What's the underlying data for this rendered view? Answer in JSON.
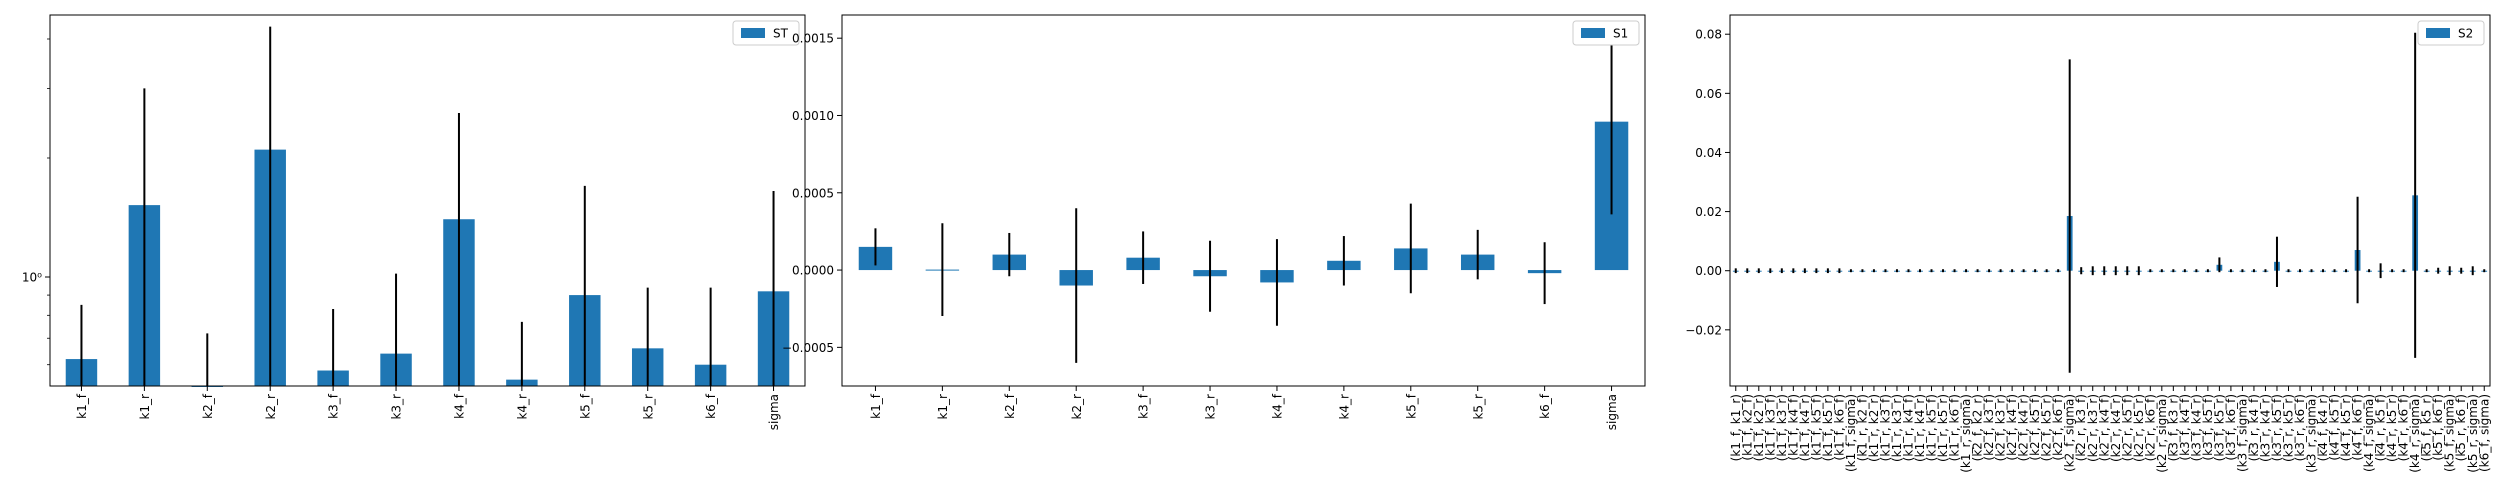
{
  "chart_data": [
    {
      "type": "bar",
      "yscale": "log",
      "categories": [
        "k1_f",
        "k1_r",
        "k2_f",
        "k2_r",
        "k3_f",
        "k3_r",
        "k4_f",
        "k4_r",
        "k5_f",
        "k5_r",
        "k6_f",
        "sigma"
      ],
      "series": [
        {
          "name": "ST",
          "color": "#1f77b4",
          "values": [
            0.62,
            1.52,
            0.53,
            2.1,
            0.58,
            0.64,
            1.4,
            0.55,
            0.9,
            0.66,
            0.6,
            0.92
          ],
          "err_low": [
            0.53,
            0.53,
            0.53,
            0.53,
            0.53,
            0.53,
            0.53,
            0.53,
            0.53,
            0.53,
            0.53,
            0.53
          ],
          "err_high": [
            0.85,
            3.0,
            0.72,
            4.3,
            0.83,
            1.02,
            2.6,
            0.77,
            1.7,
            0.94,
            0.94,
            1.65
          ]
        }
      ],
      "yticks": [
        {
          "value": 1,
          "label": "10⁰"
        }
      ],
      "ylim": [
        0.53,
        4.6
      ],
      "grid": false,
      "legend": "top-right"
    },
    {
      "type": "bar",
      "categories": [
        "k1_f",
        "k1_r",
        "k2_f",
        "k2_r",
        "k3_f",
        "k3_r",
        "k4_f",
        "k4_r",
        "k5_f",
        "k5_r",
        "k6_f",
        "sigma"
      ],
      "series": [
        {
          "name": "S1",
          "color": "#1f77b4",
          "values": [
            0.00015,
            3e-06,
            0.0001,
            -0.0001,
            8e-05,
            -4e-05,
            -8e-05,
            6e-05,
            0.00014,
            0.0001,
            -2e-05,
            0.00096
          ],
          "errors": [
            0.00012,
            0.0003,
            0.00014,
            0.0005,
            0.00017,
            0.00023,
            0.00028,
            0.00016,
            0.00029,
            0.00016,
            0.0002,
            0.0006
          ]
        }
      ],
      "yticks": [
        {
          "value": -0.0005,
          "label": "−0.0005"
        },
        {
          "value": 0,
          "label": "0.0000"
        },
        {
          "value": 0.0005,
          "label": "0.0005"
        },
        {
          "value": 0.001,
          "label": "0.0010"
        },
        {
          "value": 0.0015,
          "label": "0.0015"
        }
      ],
      "ylim": [
        -0.00075,
        0.00165
      ],
      "grid": false,
      "legend": "top-right"
    },
    {
      "type": "bar",
      "categories": [
        "(k1_f, k1_r)",
        "(k1_f, k2_f)",
        "(k1_f, k2_r)",
        "(k1_f, k3_f)",
        "(k1_f, k3_r)",
        "(k1_f, k4_f)",
        "(k1_f, k4_r)",
        "(k1_f, k5_f)",
        "(k1_f, k5_r)",
        "(k1_f, k6_f)",
        "(k1_f, sigma)",
        "(k1_r, k2_f)",
        "(k1_r, k2_r)",
        "(k1_r, k3_f)",
        "(k1_r, k3_r)",
        "(k1_r, k4_f)",
        "(k1_r, k4_r)",
        "(k1_r, k5_f)",
        "(k1_r, k5_r)",
        "(k1_r, k6_f)",
        "(k1_r, sigma)",
        "(k2_f, k2_r)",
        "(k2_f, k3_f)",
        "(k2_f, k3_r)",
        "(k2_f, k4_f)",
        "(k2_f, k4_r)",
        "(k2_f, k5_f)",
        "(k2_f, k5_r)",
        "(k2_f, k6_f)",
        "(k2_f, sigma)",
        "(k2_r, k3_f)",
        "(k2_r, k3_r)",
        "(k2_r, k4_f)",
        "(k2_r, k4_r)",
        "(k2_r, k5_f)",
        "(k2_r, k5_r)",
        "(k2_r, k6_f)",
        "(k2_r, sigma)",
        "(k3_f, k3_r)",
        "(k3_f, k4_f)",
        "(k3_f, k4_r)",
        "(k3_f, k5_f)",
        "(k3_f, k5_r)",
        "(k3_f, k6_f)",
        "(k3_f, sigma)",
        "(k3_r, k4_f)",
        "(k3_r, k4_r)",
        "(k3_r, k5_f)",
        "(k3_r, k5_r)",
        "(k3_r, k6_f)",
        "(k3_r, sigma)",
        "(k4_f, k4_r)",
        "(k4_f, k5_f)",
        "(k4_f, k5_r)",
        "(k4_f, k6_f)",
        "(k4_f, sigma)",
        "(k4_r, k5_f)",
        "(k4_r, k5_r)",
        "(k4_r, k6_f)",
        "(k4_r, sigma)",
        "(k5_f, k5_r)",
        "(k5_f, k6_f)",
        "(k5_f, sigma)",
        "(k5_r, k6_f)",
        "(k5_r, sigma)",
        "(k6_f, sigma)"
      ],
      "series": [
        {
          "name": "S2",
          "color": "#1f77b4",
          "values": [
            0,
            0,
            0,
            0,
            0,
            0,
            0,
            0,
            0,
            0,
            0,
            0,
            0,
            0,
            0,
            0,
            0,
            0,
            0,
            0,
            0,
            0,
            0,
            0,
            0,
            0,
            0,
            0,
            0,
            0.0185,
            0,
            0,
            0,
            0,
            0,
            0,
            0,
            0,
            0,
            0,
            0,
            0,
            0.002,
            0,
            0,
            0,
            0,
            0.003,
            0,
            0,
            0,
            0,
            0,
            0,
            0.007,
            0,
            0,
            0,
            0,
            0.0255,
            0,
            0,
            0,
            0,
            0,
            0
          ],
          "errors": [
            0.0008,
            0.0008,
            0.0008,
            0.0008,
            0.0008,
            0.0008,
            0.0008,
            0.0008,
            0.0008,
            0.0008,
            0.0005,
            0.0005,
            0.0005,
            0.0005,
            0.0005,
            0.0005,
            0.0005,
            0.0005,
            0.0005,
            0.0005,
            0.0005,
            0.0005,
            0.0005,
            0.0005,
            0.0005,
            0.0005,
            0.0005,
            0.0005,
            0.0005,
            0.053,
            0.0012,
            0.0015,
            0.0015,
            0.0015,
            0.0015,
            0.0015,
            0.0005,
            0.0005,
            0.0005,
            0.0005,
            0.0005,
            0.0005,
            0.0025,
            0.0005,
            0.0005,
            0.0005,
            0.0005,
            0.0085,
            0.0005,
            0.0005,
            0.0005,
            0.0005,
            0.0005,
            0.0005,
            0.018,
            0.0005,
            0.0025,
            0.0005,
            0.0005,
            0.055,
            0.0005,
            0.001,
            0.0015,
            0.001,
            0.0015,
            0.0005
          ]
        }
      ],
      "yticks": [
        {
          "value": -0.02,
          "label": "−0.02"
        },
        {
          "value": 0,
          "label": "0.00"
        },
        {
          "value": 0.02,
          "label": "0.02"
        },
        {
          "value": 0.04,
          "label": "0.04"
        },
        {
          "value": 0.06,
          "label": "0.06"
        },
        {
          "value": 0.08,
          "label": "0.08"
        }
      ],
      "ylim": [
        -0.039,
        0.0865
      ],
      "grid": false,
      "legend": "top-right"
    }
  ]
}
